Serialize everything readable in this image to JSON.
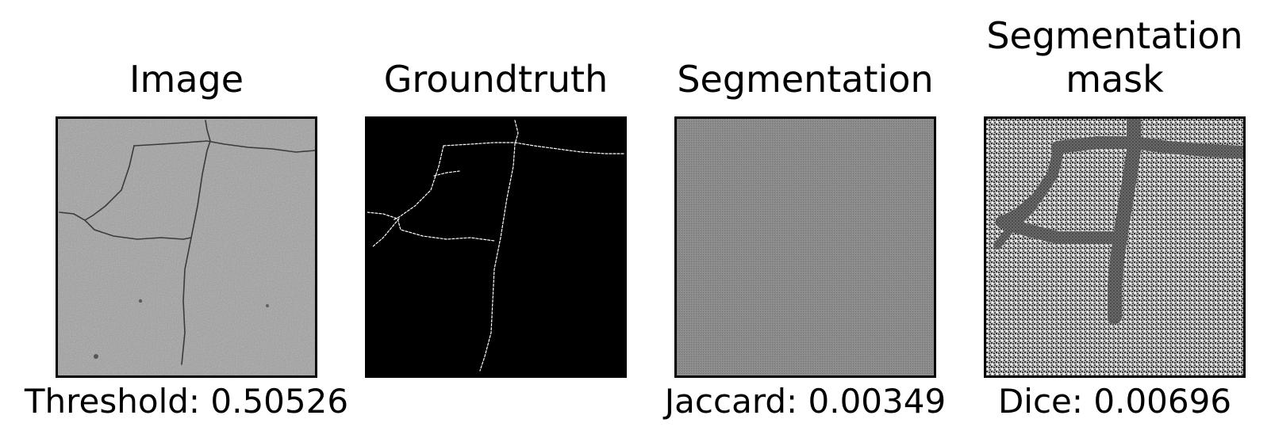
{
  "panels": [
    {
      "title": "Image",
      "caption": "Threshold: 0.50526"
    },
    {
      "title": "Groundtruth",
      "caption": ""
    },
    {
      "title": "Segmentation",
      "caption": "Jaccard: 0.00349"
    },
    {
      "title": "Segmentation\nmask",
      "caption": "Dice: 0.00696"
    }
  ]
}
